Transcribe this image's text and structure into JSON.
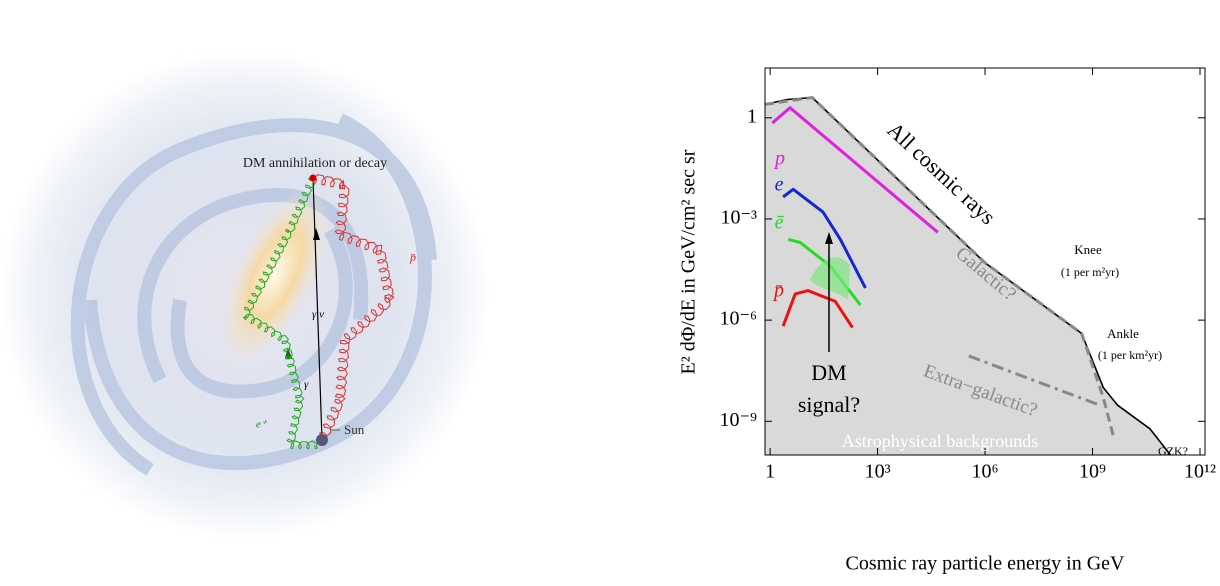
{
  "illustration": {
    "labels": [
      "DM annihilation or decay",
      "p̄",
      "γ ν",
      "γ",
      "e⁺",
      "Sun"
    ]
  },
  "chart_data": {
    "type": "line",
    "xlabel": "Cosmic ray particle energy in GeV",
    "ylabel": "E² dΦ/dE in GeV/cm² sec sr",
    "xscale": "log",
    "yscale": "log",
    "xlim": [
      0.72,
      1380000000000.0
    ],
    "ylim": [
      1e-10,
      30
    ],
    "xticks": [
      1,
      {
        "value": 1000,
        "label": "10³"
      },
      {
        "value": 1000000,
        "label": "10⁶"
      },
      {
        "value": 1000000000,
        "label": "10⁹"
      },
      {
        "value": 1000000000000,
        "label": "10¹²"
      }
    ],
    "yticks": [
      1,
      {
        "value": 0.001,
        "label": "10⁻³"
      },
      {
        "value": 1e-06,
        "label": "10⁻⁶"
      },
      {
        "value": 1e-09,
        "label": "10⁻⁹"
      }
    ],
    "series": [
      {
        "name": "All cosmic rays",
        "color": "#000000",
        "fill": "#d9d9d9",
        "x": [
          0.72,
          3,
          15,
          1000000,
          500000000,
          2000000000,
          5000000000,
          40000000000,
          150000000000
        ],
        "values": [
          2.5,
          3.5,
          4,
          5e-05,
          4e-07,
          1e-08,
          3e-09,
          6e-10,
          1e-10
        ]
      },
      {
        "name": "Galactic?",
        "color": "#888888",
        "x": [
          0.72,
          15,
          1000000,
          500000000,
          2000000000,
          4000000000
        ],
        "values": [
          2.5,
          4,
          5e-05,
          4e-07,
          5e-09,
          3e-10
        ]
      },
      {
        "name": "Extra−galactic?",
        "color": "#888888",
        "x": [
          350000,
          1600000000
        ],
        "values": [
          8.7e-08,
          3e-09
        ]
      },
      {
        "name": "p",
        "color": "#e020e0",
        "x": [
          1.15,
          3.6,
          48000
        ],
        "values": [
          0.7,
          2,
          0.0004
        ]
      },
      {
        "name": "e",
        "color": "#1428d0",
        "x": [
          2.3,
          4.4,
          30,
          91,
          457
        ],
        "values": [
          0.0045,
          0.0076,
          0.0016,
          0.00025,
          9e-06
        ]
      },
      {
        "name": "ē",
        "color": "#22dd22",
        "x": [
          3.2,
          6.9,
          48,
          331
        ],
        "values": [
          0.00025,
          0.0002,
          4e-05,
          2.8e-06
        ]
      },
      {
        "name": "p̄",
        "color": "#ee1111",
        "x": [
          2.3,
          5,
          11.5,
          66,
          200
        ],
        "values": [
          6.6e-07,
          6e-06,
          7.5e-06,
          3.6e-06,
          6e-07
        ]
      }
    ],
    "annotations": [
      "Knee",
      "(1 per m²yr)",
      "Ankle",
      "(1 per km²yr)",
      "GZK?",
      "DM",
      "signal?",
      "Astrophysical backgrounds"
    ]
  }
}
